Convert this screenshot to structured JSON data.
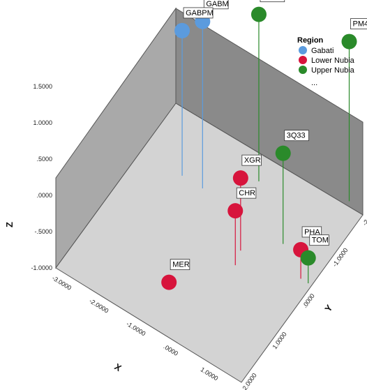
{
  "chart_data": {
    "type": "scatter-3d",
    "axes": {
      "x": {
        "label": "X",
        "ticks": [
          "-3.0000",
          "-2.0000",
          "-1.0000",
          ".0000",
          "1.0000",
          "2.0000"
        ],
        "range": [
          -3,
          2
        ]
      },
      "y": {
        "label": "Y",
        "ticks": [
          "2.0000",
          "1.0000",
          ".0000",
          "-1.0000",
          "-2.0000"
        ],
        "range": [
          2,
          -2
        ]
      },
      "z": {
        "label": "Z",
        "ticks": [
          "1.5000",
          "1.0000",
          ".5000",
          ".0000",
          "-.5000",
          "-1.0000"
        ],
        "range": [
          -1,
          1.5
        ]
      }
    },
    "legend": {
      "title": "Region",
      "placement": "top-right",
      "items": [
        {
          "name": "Gabati",
          "color": "#5b9bde"
        },
        {
          "name": "Lower Nubia",
          "color": "#d7143c"
        },
        {
          "name": "Upper Nubia",
          "color": "#2a8a2a"
        }
      ],
      "more": "..."
    },
    "points": [
      {
        "label": "GABPM",
        "group": "Gabati",
        "x": -1.9,
        "y": -0.85,
        "z": 1.0
      },
      {
        "label": "GABM",
        "group": "Gabati",
        "x": -1.35,
        "y": -0.85,
        "z": 1.3
      },
      {
        "label": "3J23",
        "group": "Upper Nubia",
        "x": -0.4,
        "y": -1.55,
        "z": 1.3
      },
      {
        "label": "PM4C",
        "group": "Upper Nubia",
        "x": 1.55,
        "y": -2.15,
        "z": 1.2
      },
      {
        "label": "3Q33",
        "group": "Upper Nubia",
        "x": 0.9,
        "y": -0.75,
        "z": 0.25
      },
      {
        "label": "XGR",
        "group": "Lower Nubia",
        "x": 0.2,
        "y": -0.2,
        "z": 0.0
      },
      {
        "label": "CHR",
        "group": "Lower Nubia",
        "x": 0.3,
        "y": 0.1,
        "z": -0.25
      },
      {
        "label": "MER",
        "group": "Lower Nubia",
        "x": -0.8,
        "y": 0.95,
        "z": -1.1
      },
      {
        "label": "PHA",
        "group": "Lower Nubia",
        "x": 1.7,
        "y": -0.35,
        "z": -0.6
      },
      {
        "label": "TOM",
        "group": "Upper Nubia",
        "x": 1.9,
        "y": -0.35,
        "z": -0.65
      }
    ]
  }
}
